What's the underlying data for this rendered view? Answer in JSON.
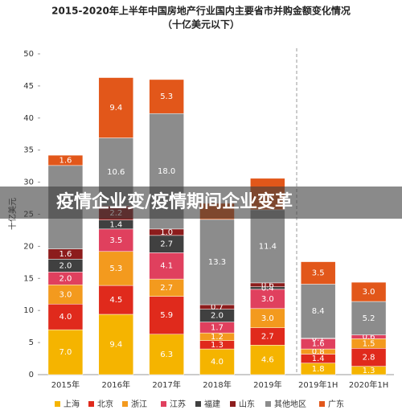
{
  "chart_data": {
    "type": "stacked_bar",
    "title": "2015-2020年上半年中国房地产行业国内主要省市并购金额变化情况",
    "subtitle": "（十亿美元以下）",
    "ylabel": "十亿美元",
    "overlay": "疫情企业变/疫情期间企业变革",
    "categories": [
      "2015年",
      "2016年",
      "2017年",
      "2018年",
      "2019年",
      "2019年1H",
      "2020年1H"
    ],
    "ylim": [
      0,
      50
    ],
    "yticks": [
      0,
      5,
      10,
      15,
      20,
      25,
      30,
      35,
      40,
      45,
      50
    ],
    "series": [
      {
        "name": "上海",
        "color": "#f5b400",
        "values": [
          7.0,
          9.4,
          6.3,
          4.0,
          4.6,
          1.8,
          1.3
        ],
        "value_labels": [
          "7.0",
          "9.4",
          "6.3",
          "4.0",
          "4.6",
          "1.8",
          "1.3"
        ]
      },
      {
        "name": "北京",
        "color": "#e02a1c",
        "values": [
          4.0,
          4.5,
          5.9,
          1.3,
          2.7,
          1.4,
          2.8
        ],
        "value_labels": [
          "4.0",
          "4.5",
          "5.9",
          "1.3",
          "2.7",
          "1.4",
          "2.8"
        ]
      },
      {
        "name": "浙江",
        "color": "#f39a1e",
        "values": [
          3.0,
          5.3,
          2.7,
          1.2,
          3.0,
          0.8,
          1.5
        ],
        "value_labels": [
          "3.0",
          "5.3",
          "2.7",
          "1.2",
          "3.0",
          "0.8",
          "1.5"
        ]
      },
      {
        "name": "江苏",
        "color": "#e0405e",
        "values": [
          2.0,
          3.5,
          4.1,
          1.7,
          3.0,
          1.6,
          0.6
        ],
        "value_labels": [
          "2.0",
          "3.5",
          "4.1",
          "1.7",
          "3.0",
          "1.6",
          "0.6"
        ]
      },
      {
        "name": "福建",
        "color": "#404040",
        "values": [
          2.0,
          1.4,
          2.7,
          2.0,
          0.4,
          0.1,
          null
        ],
        "value_labels": [
          "2.0",
          "1.4",
          "2.7",
          "2.0",
          "0.4",
          "0.1",
          null
        ]
      },
      {
        "name": "山东",
        "color": "#8c1c1c",
        "values": [
          1.6,
          2.2,
          1.0,
          0.7,
          0.6,
          null,
          null
        ],
        "value_labels": [
          "1.6",
          "2.2",
          "1.0",
          "0.7",
          "0.6",
          null,
          null
        ]
      },
      {
        "name": "其他地区",
        "color": "#8c8c8c",
        "values": [
          13.0,
          10.6,
          18.0,
          13.3,
          11.4,
          8.4,
          5.2
        ],
        "value_labels": [
          null,
          "10.6",
          "18.0",
          "13.3",
          "11.4",
          "8.4",
          "5.2"
        ]
      },
      {
        "name": "广东",
        "color": "#e2571a",
        "values": [
          1.6,
          9.4,
          5.3,
          2.5,
          4.9,
          3.5,
          3.0
        ],
        "value_labels": [
          "1.6",
          "9.4",
          "5.3",
          null,
          null,
          "3.5",
          "3.0"
        ]
      }
    ]
  }
}
